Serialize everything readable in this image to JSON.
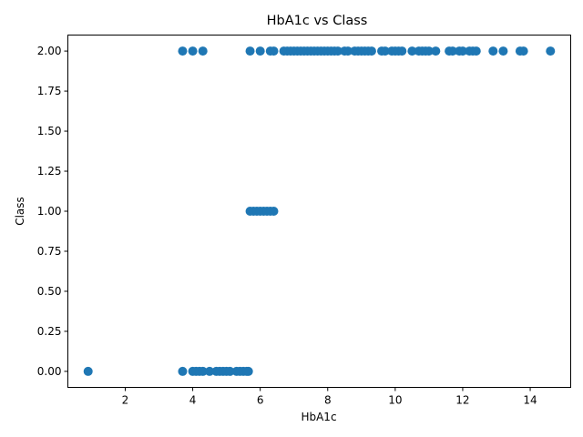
{
  "chart_data": {
    "type": "scatter",
    "title": "HbA1c vs Class",
    "xlabel": "HbA1c",
    "ylabel": "Class",
    "xlim": [
      0.3,
      15.2
    ],
    "ylim": [
      -0.1,
      2.1
    ],
    "xticks": [
      2,
      4,
      6,
      8,
      10,
      12,
      14
    ],
    "xtick_labels": [
      "2",
      "4",
      "6",
      "8",
      "10",
      "12",
      "14"
    ],
    "yticks": [
      0.0,
      0.25,
      0.5,
      0.75,
      1.0,
      1.25,
      1.5,
      1.75,
      2.0
    ],
    "ytick_labels": [
      "0.00",
      "0.25",
      "0.50",
      "0.75",
      "1.00",
      "1.25",
      "1.50",
      "1.75",
      "2.00"
    ],
    "grid": false,
    "marker_color": "#1f77b4",
    "series": [
      {
        "points": [
          [
            0.9,
            0
          ],
          [
            3.7,
            0
          ],
          [
            4.0,
            0
          ],
          [
            4.1,
            0
          ],
          [
            4.2,
            0
          ],
          [
            4.3,
            0
          ],
          [
            4.5,
            0
          ],
          [
            4.7,
            0
          ],
          [
            4.8,
            0
          ],
          [
            4.9,
            0
          ],
          [
            5.0,
            0
          ],
          [
            5.1,
            0
          ],
          [
            5.3,
            0
          ],
          [
            5.4,
            0
          ],
          [
            5.5,
            0
          ],
          [
            5.6,
            0
          ],
          [
            5.65,
            0
          ],
          [
            5.7,
            1
          ],
          [
            5.8,
            1
          ],
          [
            5.9,
            1
          ],
          [
            6.0,
            1
          ],
          [
            6.1,
            1
          ],
          [
            6.2,
            1
          ],
          [
            6.3,
            1
          ],
          [
            6.4,
            1
          ],
          [
            3.7,
            2
          ],
          [
            4.0,
            2
          ],
          [
            4.3,
            2
          ],
          [
            5.7,
            2
          ],
          [
            6.0,
            2
          ],
          [
            6.3,
            2
          ],
          [
            6.4,
            2
          ],
          [
            6.7,
            2
          ],
          [
            6.8,
            2
          ],
          [
            6.9,
            2
          ],
          [
            7.0,
            2
          ],
          [
            7.1,
            2
          ],
          [
            7.2,
            2
          ],
          [
            7.3,
            2
          ],
          [
            7.4,
            2
          ],
          [
            7.5,
            2
          ],
          [
            7.6,
            2
          ],
          [
            7.7,
            2
          ],
          [
            7.8,
            2
          ],
          [
            7.9,
            2
          ],
          [
            8.0,
            2
          ],
          [
            8.1,
            2
          ],
          [
            8.2,
            2
          ],
          [
            8.3,
            2
          ],
          [
            8.5,
            2
          ],
          [
            8.6,
            2
          ],
          [
            8.8,
            2
          ],
          [
            8.9,
            2
          ],
          [
            9.0,
            2
          ],
          [
            9.1,
            2
          ],
          [
            9.2,
            2
          ],
          [
            9.3,
            2
          ],
          [
            9.6,
            2
          ],
          [
            9.7,
            2
          ],
          [
            9.9,
            2
          ],
          [
            10.0,
            2
          ],
          [
            10.1,
            2
          ],
          [
            10.2,
            2
          ],
          [
            10.5,
            2
          ],
          [
            10.7,
            2
          ],
          [
            10.8,
            2
          ],
          [
            10.9,
            2
          ],
          [
            11.0,
            2
          ],
          [
            11.2,
            2
          ],
          [
            11.6,
            2
          ],
          [
            11.7,
            2
          ],
          [
            11.9,
            2
          ],
          [
            12.0,
            2
          ],
          [
            12.2,
            2
          ],
          [
            12.3,
            2
          ],
          [
            12.4,
            2
          ],
          [
            12.9,
            2
          ],
          [
            13.2,
            2
          ],
          [
            13.7,
            2
          ],
          [
            13.8,
            2
          ],
          [
            14.6,
            2
          ]
        ]
      }
    ]
  }
}
